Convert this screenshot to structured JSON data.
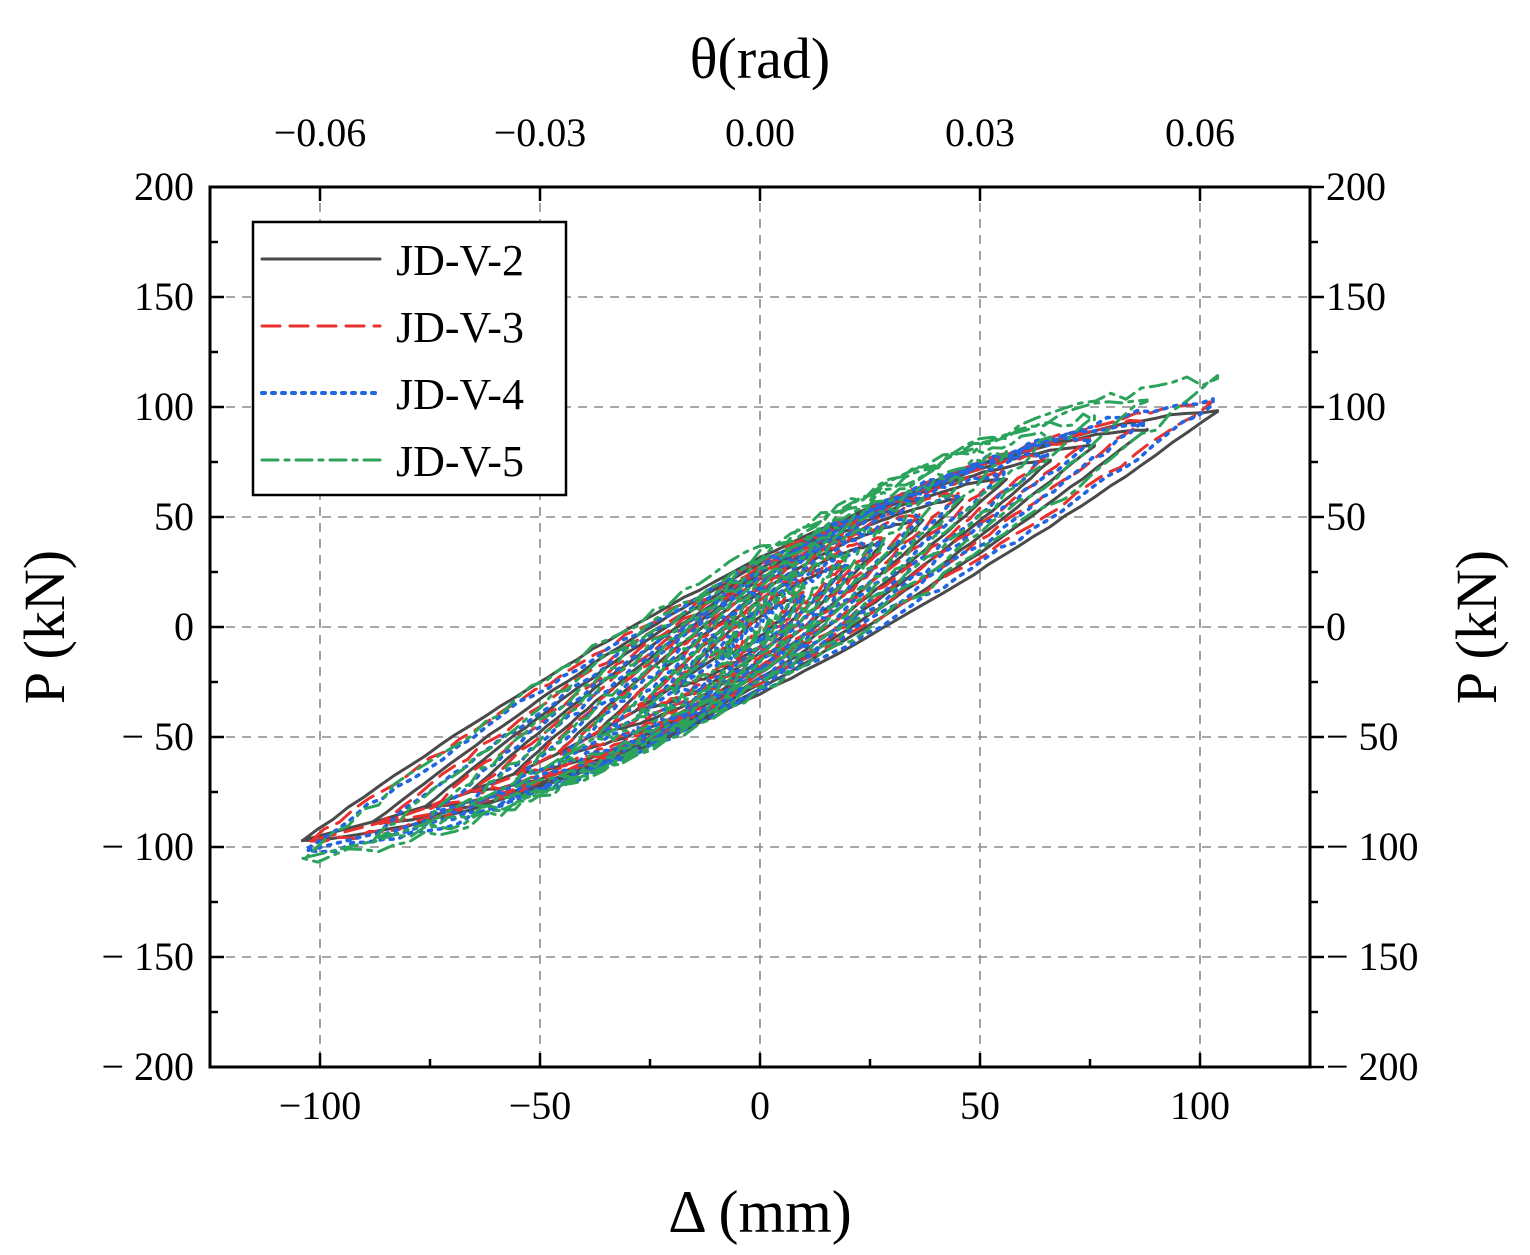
{
  "chart_data": {
    "type": "line",
    "title": "",
    "xlabel": "Δ (mm)",
    "ylabel_left": "P (kN)",
    "ylabel_right": "P (kN)",
    "x2label": "θ(rad)",
    "xlim": [
      -125,
      125
    ],
    "ylim": [
      -200,
      200
    ],
    "grid": true,
    "legend_position": "top-left",
    "x_ticks": [
      {
        "value": -100,
        "label": "−100"
      },
      {
        "value": -50,
        "label": "−50"
      },
      {
        "value": 0,
        "label": "0"
      },
      {
        "value": 50,
        "label": "50"
      },
      {
        "value": 100,
        "label": "100"
      }
    ],
    "y_ticks": [
      {
        "value": 200,
        "label": "200"
      },
      {
        "value": 150,
        "label": "150"
      },
      {
        "value": 100,
        "label": "100"
      },
      {
        "value": 50,
        "label": "50"
      },
      {
        "value": 0,
        "label": "0"
      },
      {
        "value": -50,
        "label": "− 50"
      },
      {
        "value": -100,
        "label": "− 100"
      },
      {
        "value": -150,
        "label": "− 150"
      },
      {
        "value": -200,
        "label": "− 200"
      }
    ],
    "x2_ticks": [
      {
        "value": -100,
        "label": "−0.06"
      },
      {
        "value": -50,
        "label": "−0.03"
      },
      {
        "value": 0,
        "label": "0.00"
      },
      {
        "value": 50,
        "label": "0.03"
      },
      {
        "value": 100,
        "label": "0.06"
      }
    ],
    "cycle_amplitudes": [
      10,
      20,
      28,
      37,
      46,
      56,
      66,
      76,
      88,
      104
    ],
    "series": [
      {
        "name": "JD-V-2",
        "color": "#4a4a4a",
        "dash": "solid",
        "peak_pos": [
          98,
          92
        ],
        "peak_neg": [
          -97,
          -90
        ],
        "amp_scale": 1.0,
        "pinch": 0.34,
        "noise": 0.4,
        "offset": 0
      },
      {
        "name": "JD-V-3",
        "color": "#e8312f",
        "dash": "dashed",
        "peak_pos": [
          101,
          97
        ],
        "peak_neg": [
          -100,
          -94
        ],
        "amp_scale": 0.985,
        "pinch": 0.3,
        "noise": 1.2,
        "offset": 1.5
      },
      {
        "name": "JD-V-4",
        "color": "#2166e0",
        "dash": "dotted",
        "peak_pos": [
          104,
          99
        ],
        "peak_neg": [
          -101,
          -96
        ],
        "amp_scale": 0.99,
        "pinch": 0.31,
        "noise": 1.8,
        "offset": -1.5
      },
      {
        "name": "JD-V-5",
        "color": "#2ca35a",
        "dash": "dashdot",
        "peak_pos": [
          110,
          104
        ],
        "peak_neg": [
          -108,
          -101
        ],
        "amp_scale": 1.0,
        "pinch": 0.32,
        "noise": 2.4,
        "offset": 2.5
      }
    ]
  }
}
